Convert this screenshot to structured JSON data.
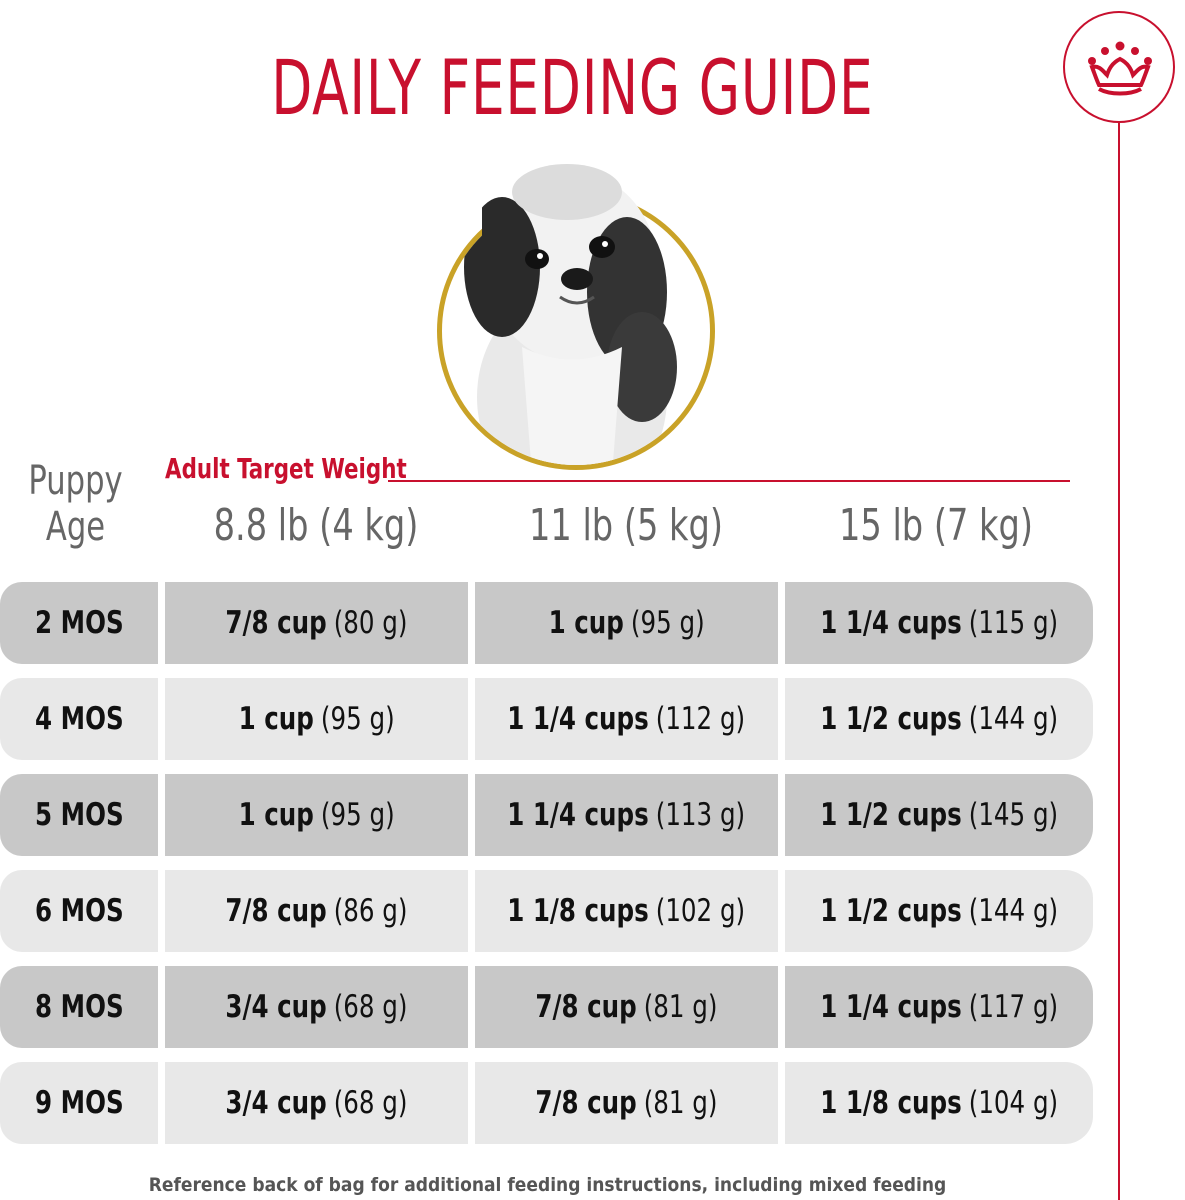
{
  "title": "DAILY FEEDING GUIDE",
  "brand": {
    "emblem_icon": "crown-icon",
    "color": "#c8102e"
  },
  "portrait": {
    "icon": "shih-tzu-puppy-photo",
    "ring_color": "#c9a227"
  },
  "table": {
    "row_header": "Puppy Age",
    "weight_label": "Adult Target Weight",
    "columns": [
      "8.8 lb (4 kg)",
      "11 lb (5 kg)",
      "15 lb (7 kg)"
    ],
    "rows": [
      {
        "age": "2 MOS",
        "cells": [
          {
            "amount": "7/8 cup",
            "grams": "(80 g)"
          },
          {
            "amount": "1 cup",
            "grams": "(95 g)"
          },
          {
            "amount": "1 1/4 cups",
            "grams": "(115 g)"
          }
        ]
      },
      {
        "age": "4 MOS",
        "cells": [
          {
            "amount": "1 cup",
            "grams": "(95 g)"
          },
          {
            "amount": "1 1/4 cups",
            "grams": "(112 g)"
          },
          {
            "amount": "1 1/2 cups",
            "grams": "(144 g)"
          }
        ]
      },
      {
        "age": "5 MOS",
        "cells": [
          {
            "amount": "1 cup",
            "grams": "(95 g)"
          },
          {
            "amount": "1 1/4 cups",
            "grams": "(113 g)"
          },
          {
            "amount": "1 1/2 cups",
            "grams": "(145 g)"
          }
        ]
      },
      {
        "age": "6 MOS",
        "cells": [
          {
            "amount": "7/8 cup",
            "grams": "(86 g)"
          },
          {
            "amount": "1 1/8 cups",
            "grams": "(102 g)"
          },
          {
            "amount": "1 1/2 cups",
            "grams": "(144 g)"
          }
        ]
      },
      {
        "age": "8 MOS",
        "cells": [
          {
            "amount": "3/4 cup",
            "grams": "(68 g)"
          },
          {
            "amount": "7/8 cup",
            "grams": "(81 g)"
          },
          {
            "amount": "1 1/4 cups",
            "grams": "(117 g)"
          }
        ]
      },
      {
        "age": "9 MOS",
        "cells": [
          {
            "amount": "3/4 cup",
            "grams": "(68 g)"
          },
          {
            "amount": "7/8 cup",
            "grams": "(81 g)"
          },
          {
            "amount": "1 1/8 cups",
            "grams": "(104 g)"
          }
        ]
      }
    ]
  },
  "footnote": "Reference back of bag for additional feeding instructions, including mixed feeding"
}
